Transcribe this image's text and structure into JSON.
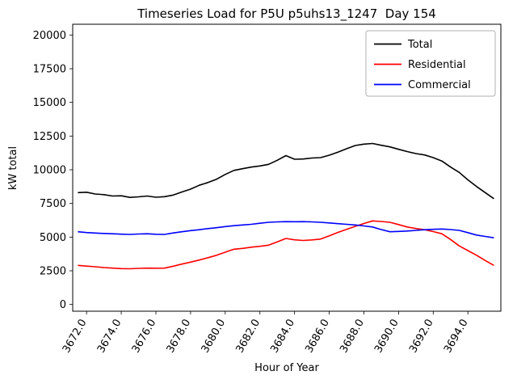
{
  "chart_data": {
    "type": "line",
    "title": "Timeseries Load for P5U p5uhs13_1247  Day 154",
    "xlabel": "Hour of Year",
    "ylabel": "kW total",
    "xlim": [
      3671.2,
      3695.9
    ],
    "ylim": [
      -500,
      20800
    ],
    "grid": false,
    "legend_position": "upper right",
    "yticks": [
      0,
      2500,
      5000,
      7500,
      10000,
      12500,
      15000,
      17500,
      20000
    ],
    "xticks": [
      3672,
      3674,
      3676,
      3678,
      3680,
      3682,
      3684,
      3686,
      3688,
      3690,
      3692,
      3694
    ],
    "xtick_labels": [
      "3672.0",
      "3674.0",
      "3676.0",
      "3678.0",
      "3680.0",
      "3682.0",
      "3684.0",
      "3686.0",
      "3688.0",
      "3690.0",
      "3692.0",
      "3694.0"
    ],
    "x_start": 3671.5,
    "x_step": 0.5,
    "series": [
      {
        "name": "Total",
        "color": "#000000",
        "values": [
          8300,
          8330,
          8200,
          8150,
          8050,
          8070,
          7950,
          7990,
          8050,
          7960,
          8000,
          8120,
          8350,
          8560,
          8850,
          9050,
          9300,
          9650,
          9950,
          10080,
          10200,
          10280,
          10400,
          10700,
          11050,
          10780,
          10800,
          10870,
          10900,
          11080,
          11300,
          11560,
          11800,
          11900,
          11950,
          11820,
          11700,
          11520,
          11350,
          11200,
          11100,
          10900,
          10650,
          10200,
          9800,
          9250,
          8750,
          8300,
          7850
        ]
      },
      {
        "name": "Residential",
        "color": "#ff0000",
        "values": [
          2900,
          2850,
          2800,
          2740,
          2700,
          2660,
          2650,
          2680,
          2700,
          2690,
          2700,
          2840,
          3000,
          3140,
          3300,
          3470,
          3650,
          3880,
          4100,
          4160,
          4250,
          4320,
          4400,
          4640,
          4900,
          4800,
          4750,
          4790,
          4850,
          5090,
          5350,
          5570,
          5800,
          6010,
          6200,
          6160,
          6100,
          5930,
          5750,
          5640,
          5550,
          5410,
          5250,
          4820,
          4350,
          4000,
          3650,
          3260,
          2900
        ]
      },
      {
        "name": "Commercial",
        "color": "#0000ff",
        "values": [
          5400,
          5340,
          5300,
          5270,
          5250,
          5220,
          5200,
          5230,
          5250,
          5210,
          5200,
          5310,
          5400,
          5480,
          5550,
          5630,
          5700,
          5780,
          5850,
          5900,
          5950,
          6030,
          6100,
          6130,
          6150,
          6140,
          6150,
          6130,
          6100,
          6050,
          6000,
          5950,
          5900,
          5830,
          5750,
          5560,
          5400,
          5420,
          5450,
          5500,
          5550,
          5580,
          5600,
          5560,
          5500,
          5330,
          5150,
          5050,
          4950
        ]
      }
    ]
  }
}
